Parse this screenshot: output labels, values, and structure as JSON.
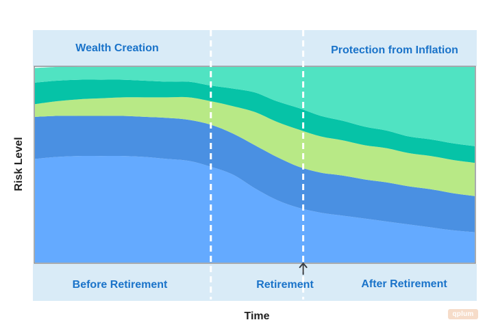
{
  "chart_data": {
    "type": "area",
    "stacked": true,
    "title": "",
    "xlabel": "Time",
    "ylabel": "Risk Level",
    "x": [
      0,
      5,
      10,
      15,
      20,
      25,
      30,
      35,
      40,
      45,
      50,
      55,
      60,
      65,
      70,
      75,
      80,
      85,
      90,
      95,
      100
    ],
    "xlim": [
      0,
      100
    ],
    "ylim": [
      0,
      100
    ],
    "series": [
      {
        "name": "",
        "color": "#64aaff",
        "values": [
          53,
          54,
          54.5,
          54.5,
          54.5,
          54,
          53,
          52,
          49,
          45,
          38,
          32,
          28,
          25.5,
          24,
          22.5,
          21,
          19.5,
          18,
          16.5,
          15.5
        ]
      },
      {
        "name": "",
        "color": "#4a90e2",
        "values": [
          21.5,
          21,
          20.5,
          20.5,
          20.5,
          20.5,
          21,
          21,
          21.5,
          21,
          22,
          22,
          21,
          20.5,
          20.5,
          20,
          20,
          19.5,
          19.5,
          19,
          18.5
        ]
      },
      {
        "name": "",
        "color": "#b8e986",
        "values": [
          6.5,
          7.5,
          8.5,
          9,
          9.5,
          10,
          10.5,
          11.5,
          12,
          14,
          17,
          18,
          19,
          18.5,
          18,
          17.5,
          17.5,
          17,
          17,
          17,
          17
        ]
      },
      {
        "name": "",
        "color": "#06c3a7",
        "values": [
          11,
          10.5,
          10,
          9.5,
          9,
          8.5,
          8,
          8,
          8,
          9,
          10,
          10.5,
          11,
          10.5,
          10,
          9.5,
          9,
          8.5,
          8.5,
          8.5,
          8.5
        ]
      },
      {
        "name": "",
        "color": "#50e3c2",
        "values": [
          7.5,
          7,
          6.5,
          6.5,
          6.5,
          7,
          7.5,
          7.5,
          9.5,
          11,
          13,
          17.5,
          21,
          25,
          27.5,
          30.5,
          32.5,
          35.5,
          37,
          39,
          40.5
        ]
      }
    ],
    "vertical_markers": [
      40,
      61
    ],
    "marker_arrow_at": 61,
    "grid": false,
    "legend": "none"
  },
  "labels": {
    "top_left": "Wealth Creation",
    "top_right": "Protection from Inflation",
    "bottom_left": "Before Retirement",
    "bottom_mid": "Retirement",
    "bottom_right": "After Retirement"
  },
  "watermark": "qplum",
  "colors": {
    "band": "#d9ebf7",
    "label": "#1a73c9",
    "axis_text": "#222222",
    "divider": "#ffffff"
  }
}
